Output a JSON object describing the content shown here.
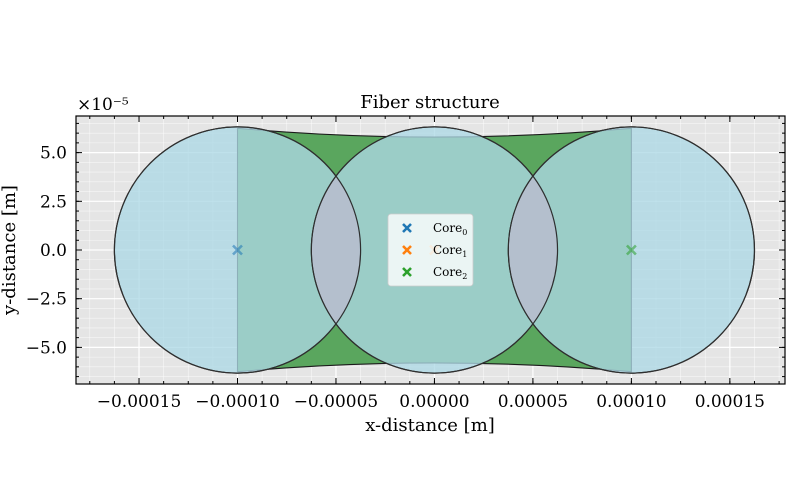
{
  "chart_data": {
    "type": "scatter",
    "title": "Fiber structure",
    "xlabel": "x-distance [m]",
    "ylabel": "y-distance [m]",
    "y_offset_label": "×10⁻⁵",
    "xlim": [
      -0.000182,
      0.000178
    ],
    "ylim": [
      -6.88e-05,
      6.88e-05
    ],
    "x_ticks": [
      -0.00015,
      -0.0001,
      -5e-05,
      0,
      5e-05,
      0.0001,
      0.00015
    ],
    "x_tick_labels": [
      "−0.00015",
      "−0.00010",
      "−0.00005",
      "0.00000",
      "0.00005",
      "0.00010",
      "0.00015"
    ],
    "y_ticks": [
      -5e-05,
      -2.5e-05,
      0,
      2.5e-05,
      5e-05
    ],
    "y_tick_labels": [
      "−5.0",
      "−2.5",
      "0.0",
      "2.5",
      "5.0"
    ],
    "grid": true,
    "legend": "center",
    "clad_color": "#5aa65e",
    "core_fill_color": "#add8e6",
    "overlap_color": "#b5bccb",
    "series": [
      {
        "name": "Core",
        "subscript": "0",
        "color": "#1f77b4",
        "x": [
          -0.0001
        ],
        "y": [
          0
        ]
      },
      {
        "name": "Core",
        "subscript": "1",
        "color": "#ff7f0e",
        "x": [
          0
        ],
        "y": [
          0
        ]
      },
      {
        "name": "Core",
        "subscript": "2",
        "color": "#2ca02c",
        "x": [
          0.0001
        ],
        "y": [
          0
        ]
      }
    ],
    "cores": [
      {
        "cx": -0.0001,
        "cy": 0,
        "r": 6.25e-05
      },
      {
        "cx": 0,
        "cy": 0,
        "r": 6.25e-05
      },
      {
        "cx": 0.0001,
        "cy": 0,
        "r": 6.25e-05
      }
    ],
    "clad_boundary_sag": 4.5e-06
  }
}
